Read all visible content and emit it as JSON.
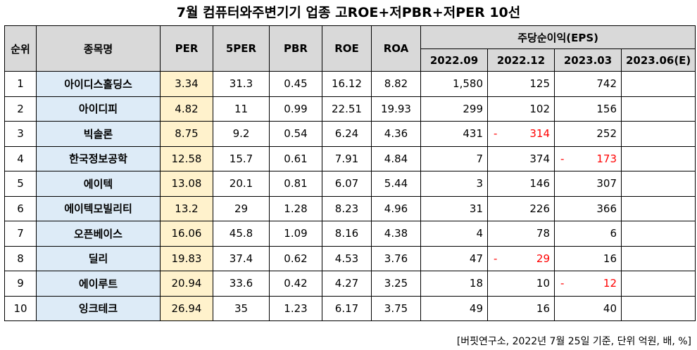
{
  "title": "7월  컴퓨터와주변기기 업종 고ROE+저PBR+저PER 10선",
  "headers": {
    "rank": "순위",
    "name": "종목명",
    "per": "PER",
    "per5": "5PER",
    "pbr": "PBR",
    "roe": "ROE",
    "roa": "ROA",
    "eps_group": "주당순이익(EPS)",
    "eps_periods": [
      "2022.09",
      "2022.12",
      "2023.03",
      "2023.06(E)"
    ]
  },
  "rows": [
    {
      "rank": "1",
      "name": "아이디스홀딩스",
      "per": "3.34",
      "per5": "31.3",
      "pbr": "0.45",
      "roe": "16.12",
      "roa": "8.82",
      "eps": [
        "1,580",
        "125",
        "742",
        ""
      ]
    },
    {
      "rank": "2",
      "name": "아이디피",
      "per": "4.82",
      "per5": "11",
      "pbr": "0.99",
      "roe": "22.51",
      "roa": "19.93",
      "eps": [
        "299",
        "102",
        "156",
        ""
      ]
    },
    {
      "rank": "3",
      "name": "빅솔론",
      "per": "8.75",
      "per5": "9.2",
      "pbr": "0.54",
      "roe": "6.24",
      "roa": "4.36",
      "eps": [
        "431",
        "-314",
        "252",
        ""
      ]
    },
    {
      "rank": "4",
      "name": "한국정보공학",
      "per": "12.58",
      "per5": "15.7",
      "pbr": "0.61",
      "roe": "7.91",
      "roa": "4.84",
      "eps": [
        "7",
        "374",
        "-173",
        ""
      ]
    },
    {
      "rank": "5",
      "name": "에이텍",
      "per": "13.08",
      "per5": "20.1",
      "pbr": "0.81",
      "roe": "6.07",
      "roa": "5.44",
      "eps": [
        "3",
        "146",
        "307",
        ""
      ]
    },
    {
      "rank": "6",
      "name": "에이텍모빌리티",
      "per": "13.2",
      "per5": "29",
      "pbr": "1.28",
      "roe": "8.23",
      "roa": "4.96",
      "eps": [
        "31",
        "226",
        "366",
        ""
      ]
    },
    {
      "rank": "7",
      "name": "오픈베이스",
      "per": "16.06",
      "per5": "45.8",
      "pbr": "1.09",
      "roe": "8.16",
      "roa": "4.38",
      "eps": [
        "4",
        "78",
        "6",
        ""
      ]
    },
    {
      "rank": "8",
      "name": "딜리",
      "per": "19.83",
      "per5": "37.4",
      "pbr": "0.62",
      "roe": "4.53",
      "roa": "3.76",
      "eps": [
        "47",
        "-29",
        "16",
        ""
      ]
    },
    {
      "rank": "9",
      "name": "에이루트",
      "per": "20.94",
      "per5": "33.6",
      "pbr": "0.42",
      "roe": "4.27",
      "roa": "3.25",
      "eps": [
        "18",
        "10",
        "-12",
        ""
      ]
    },
    {
      "rank": "10",
      "name": "잉크테크",
      "per": "26.94",
      "per5": "35",
      "pbr": "1.23",
      "roe": "6.17",
      "roa": "3.75",
      "eps": [
        "49",
        "16",
        "40",
        ""
      ]
    }
  ],
  "colors": {
    "header_bg": "#d9d9d9",
    "name_bg": "#ddebf7",
    "per_bg": "#fff2cc",
    "negative": "#ff0000"
  },
  "footer": "[버핏연구소, 2022년 7월 25일 기준, 단위 억원, 배, %]"
}
